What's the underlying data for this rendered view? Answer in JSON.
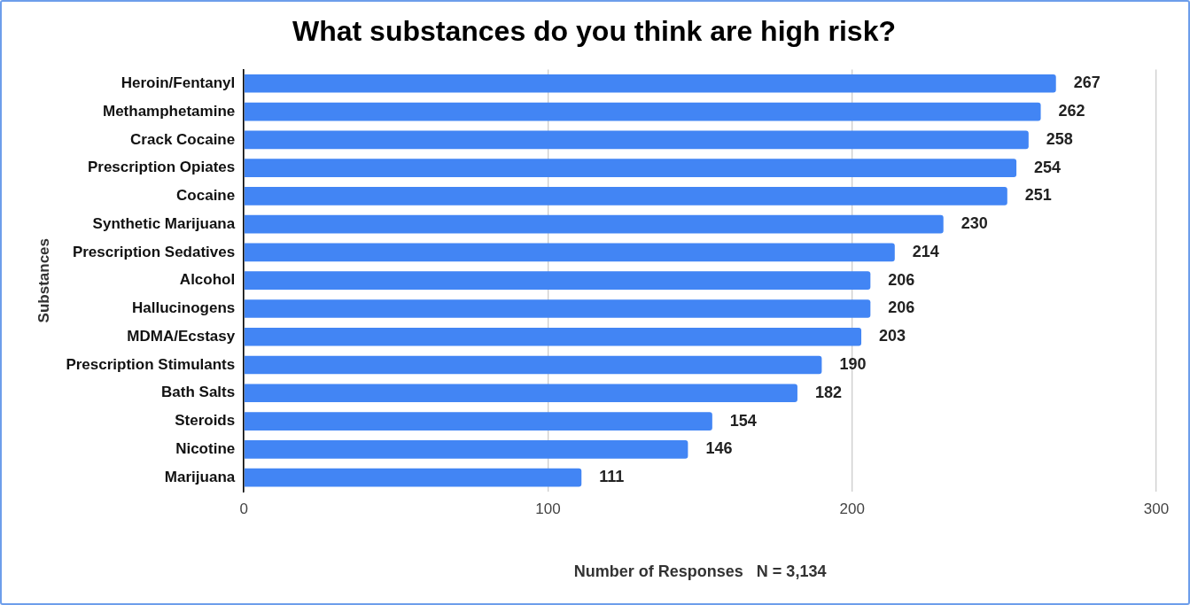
{
  "chart_data": {
    "type": "bar",
    "orientation": "horizontal",
    "title": "What substances do you think are high risk?",
    "xlabel": "Number of Responses   N = 3,134",
    "ylabel": "Substances",
    "categories": [
      "Heroin/Fentanyl",
      "Methamphetamine",
      "Crack Cocaine",
      "Prescription Opiates",
      "Cocaine",
      "Synthetic Marijuana",
      "Prescription Sedatives",
      "Alcohol",
      "Hallucinogens",
      "MDMA/Ecstasy",
      "Prescription Stimulants",
      "Bath Salts",
      "Steroids",
      "Nicotine",
      "Marijuana"
    ],
    "values": [
      267,
      262,
      258,
      254,
      251,
      230,
      214,
      206,
      206,
      203,
      190,
      182,
      154,
      146,
      111
    ],
    "color": "#4285f4",
    "xlim": [
      0,
      300
    ],
    "xticks": [
      0,
      100,
      200,
      300
    ],
    "grid": "x",
    "legend": false,
    "data_labels": true
  }
}
